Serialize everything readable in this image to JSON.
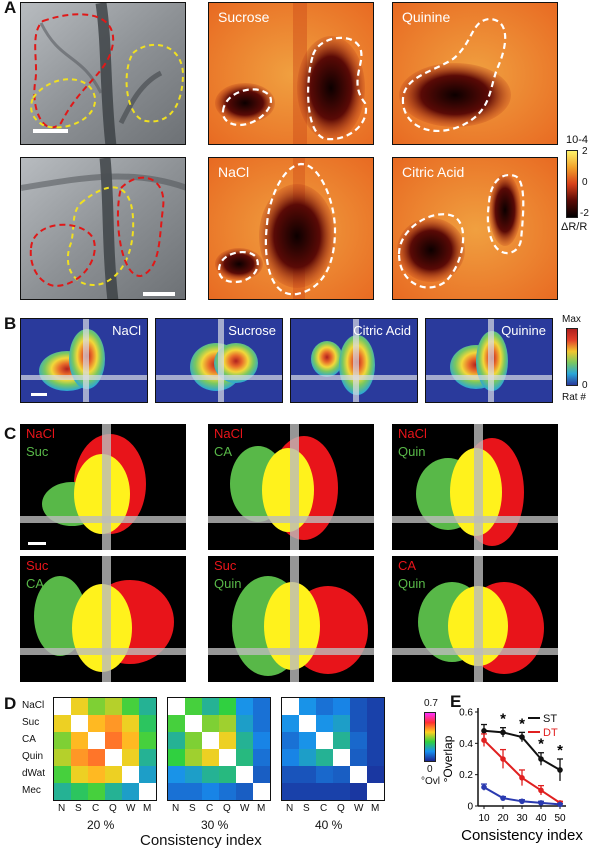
{
  "panel_labels": {
    "a": "A",
    "b": "B",
    "c": "C",
    "d": "D",
    "e": "E"
  },
  "a": {
    "tastants": [
      "Sucrose",
      "Quinine",
      "NaCl",
      "Citric Acid"
    ],
    "colorbar": {
      "exponent": "10-4",
      "ticks": [
        "2",
        "0",
        "-2"
      ],
      "unit": "ΔR/R",
      "colors": [
        "#fff36a",
        "#f2a12a",
        "#d8401a",
        "#5a0a06",
        "#000000"
      ]
    }
  },
  "b": {
    "tastants": [
      "NaCl",
      "Sucrose",
      "Citric Acid",
      "Quinine"
    ],
    "colorbar": {
      "top": "Max",
      "bottom": "0",
      "unit": "Rat #",
      "colors": [
        "#b0201e",
        "#e2402a",
        "#f2c630",
        "#7ac860",
        "#2aa6d8",
        "#2a3a9c"
      ]
    }
  },
  "c": {
    "pairs": [
      {
        "red": "NaCl",
        "green": "Suc"
      },
      {
        "red": "NaCl",
        "green": "CA"
      },
      {
        "red": "NaCl",
        "green": "Quin"
      },
      {
        "red": "Suc",
        "green": "CA"
      },
      {
        "red": "Suc",
        "green": "Quin"
      },
      {
        "red": "CA",
        "green": "Quin"
      }
    ],
    "colors": {
      "red": "#e8141a",
      "green": "#58b848",
      "yellow": "#fff21c"
    }
  },
  "d": {
    "rows": [
      "NaCl",
      "Suc",
      "CA",
      "Quin",
      "dWat",
      "Mec"
    ],
    "cols": [
      "N",
      "S",
      "C",
      "Q",
      "W",
      "M"
    ],
    "thresholds": [
      "20 %",
      "30 %",
      "40 %"
    ],
    "xlabel": "Consistency index",
    "colorbar": {
      "top": "0.7",
      "bottom": "0",
      "unit": "°Ovl"
    },
    "matrices": [
      [
        [
          1,
          0.45,
          0.35,
          0.4,
          0.3,
          0.2
        ],
        [
          0.45,
          1,
          0.5,
          0.55,
          0.45,
          0.25
        ],
        [
          0.35,
          0.5,
          1,
          0.6,
          0.5,
          0.3
        ],
        [
          0.4,
          0.55,
          0.6,
          1,
          0.45,
          0.2
        ],
        [
          0.3,
          0.45,
          0.5,
          0.45,
          1,
          0.15
        ],
        [
          0.2,
          0.25,
          0.3,
          0.2,
          0.15,
          1
        ]
      ],
      [
        [
          1,
          0.3,
          0.2,
          0.28,
          0.12,
          0.08
        ],
        [
          0.3,
          1,
          0.35,
          0.38,
          0.15,
          0.08
        ],
        [
          0.2,
          0.35,
          1,
          0.45,
          0.2,
          0.1
        ],
        [
          0.28,
          0.38,
          0.45,
          1,
          0.22,
          0.08
        ],
        [
          0.12,
          0.15,
          0.2,
          0.22,
          1,
          0.06
        ],
        [
          0.08,
          0.08,
          0.1,
          0.08,
          0.06,
          1
        ]
      ],
      [
        [
          1,
          0.12,
          0.08,
          0.1,
          0.05,
          0.03
        ],
        [
          0.12,
          1,
          0.12,
          0.15,
          0.05,
          0.03
        ],
        [
          0.08,
          0.12,
          1,
          0.2,
          0.07,
          0.03
        ],
        [
          0.1,
          0.15,
          0.2,
          1,
          0.06,
          0.03
        ],
        [
          0.05,
          0.05,
          0.07,
          0.06,
          1,
          0.02
        ],
        [
          0.03,
          0.03,
          0.03,
          0.03,
          0.02,
          1
        ]
      ]
    ]
  },
  "chart_data": {
    "type": "line",
    "x": [
      10,
      20,
      30,
      40,
      50
    ],
    "xlabel": "Consistency index",
    "ylabel": "°Overlap",
    "ylim": [
      0,
      0.6
    ],
    "xticks": [
      "10",
      "20",
      "30",
      "40",
      "50"
    ],
    "yticks": [
      "0",
      "0.2",
      "0.4",
      "0.6"
    ],
    "series": [
      {
        "name": "ST",
        "color": "#111111",
        "values": [
          0.48,
          0.47,
          0.44,
          0.3,
          0.23
        ],
        "errors": [
          0.04,
          0.03,
          0.03,
          0.04,
          0.07
        ]
      },
      {
        "name": "DT",
        "color": "#e02020",
        "values": [
          0.42,
          0.3,
          0.18,
          0.1,
          0.02
        ],
        "errors": [
          0.04,
          0.06,
          0.05,
          0.03,
          0.01
        ]
      },
      {
        "name": "",
        "color": "#2a3ab0",
        "values": [
          0.12,
          0.05,
          0.03,
          0.02,
          0.01
        ],
        "errors": [
          0.02,
          0.01,
          0.01,
          0.01,
          0.005
        ]
      }
    ],
    "significance": [
      {
        "x": 20,
        "label": "*"
      },
      {
        "x": 30,
        "label": "*"
      },
      {
        "x": 40,
        "label": "*"
      },
      {
        "x": 50,
        "label": "*"
      }
    ]
  }
}
